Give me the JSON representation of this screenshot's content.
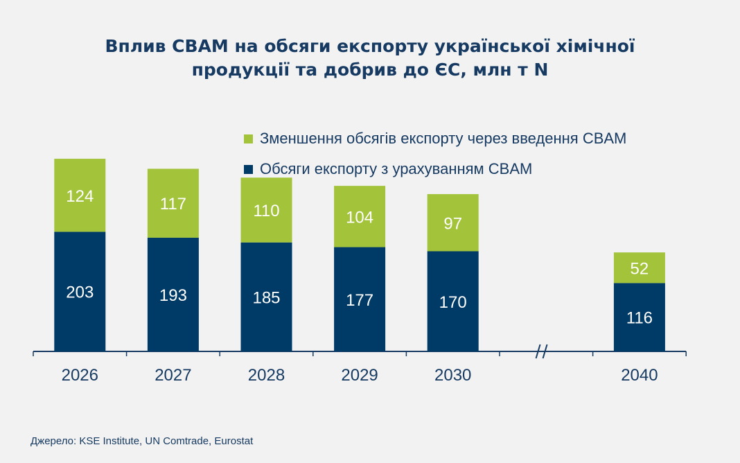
{
  "title_line1": "Вплив CBAM на обсяги експорту української хімічної",
  "title_line2": "продукції та добрив до ЄС, млн т N",
  "source": "Джерело:  KSE Institute,  UN Comtrade,  Eurostat",
  "chart_data": {
    "type": "bar",
    "stacked": true,
    "title": "Вплив CBAM на обсяги експорту української хімічної продукції та добрив до ЄС, млн т N",
    "categories": [
      "2026",
      "2027",
      "2028",
      "2029",
      "2030",
      "2040"
    ],
    "axis_break_between": [
      "2030",
      "2040"
    ],
    "legend_position": "top-right",
    "grid": false,
    "series": [
      {
        "name": "Обсяги експорту з урахуванням CBAM",
        "color": "#003a66",
        "values": [
          203,
          193,
          185,
          177,
          170,
          116
        ]
      },
      {
        "name": "Зменшення обсягів експорту через введення CBAM",
        "color": "#a3c43a",
        "values": [
          124,
          117,
          110,
          104,
          97,
          52
        ]
      }
    ]
  }
}
